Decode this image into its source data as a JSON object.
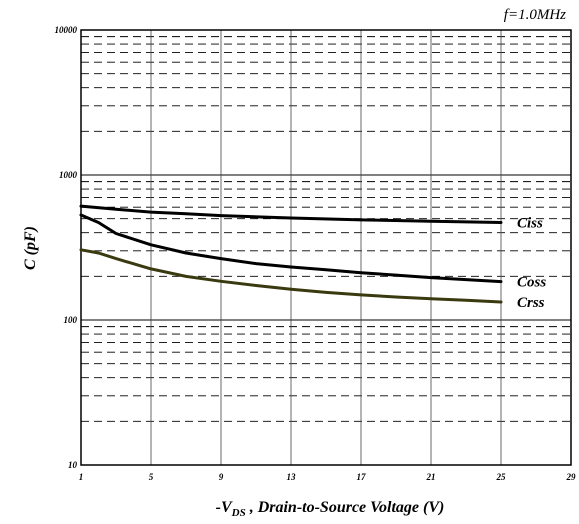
{
  "chart_data": {
    "type": "line",
    "title": "",
    "annotation": "f=1.0MHz",
    "xlabel": "-V",
    "xlabel_sub": "DS",
    "xlabel_rest": " , Drain-to-Source Voltage (V)",
    "ylabel": "C (pF)",
    "xlim": [
      1,
      29
    ],
    "ylim": [
      10,
      10000
    ],
    "yscale": "log",
    "grid": true,
    "x_ticks": [
      "1",
      "5",
      "9",
      "13",
      "17",
      "21",
      "25",
      "29"
    ],
    "y_ticks": [
      "10",
      "100",
      "1000",
      "10000"
    ],
    "series": [
      {
        "name": "Ciss",
        "color": "#000000",
        "points": [
          [
            1,
            610
          ],
          [
            3,
            580
          ],
          [
            5,
            555
          ],
          [
            7,
            540
          ],
          [
            9,
            525
          ],
          [
            13,
            505
          ],
          [
            17,
            490
          ],
          [
            21,
            480
          ],
          [
            25,
            470
          ]
        ]
      },
      {
        "name": "Coss",
        "color": "#000000",
        "points": [
          [
            1,
            530
          ],
          [
            2,
            470
          ],
          [
            3,
            395
          ],
          [
            5,
            330
          ],
          [
            7,
            290
          ],
          [
            9,
            265
          ],
          [
            11,
            245
          ],
          [
            13,
            232
          ],
          [
            15,
            222
          ],
          [
            17,
            212
          ],
          [
            19,
            204
          ],
          [
            21,
            196
          ],
          [
            23,
            190
          ],
          [
            25,
            184
          ]
        ]
      },
      {
        "name": "Crss",
        "color": "#3a3a10",
        "points": [
          [
            1,
            305
          ],
          [
            2,
            290
          ],
          [
            3,
            265
          ],
          [
            5,
            225
          ],
          [
            7,
            200
          ],
          [
            9,
            185
          ],
          [
            11,
            173
          ],
          [
            13,
            163
          ],
          [
            15,
            155
          ],
          [
            17,
            149
          ],
          [
            19,
            144
          ],
          [
            21,
            140
          ],
          [
            23,
            137
          ],
          [
            25,
            133
          ]
        ]
      }
    ]
  }
}
